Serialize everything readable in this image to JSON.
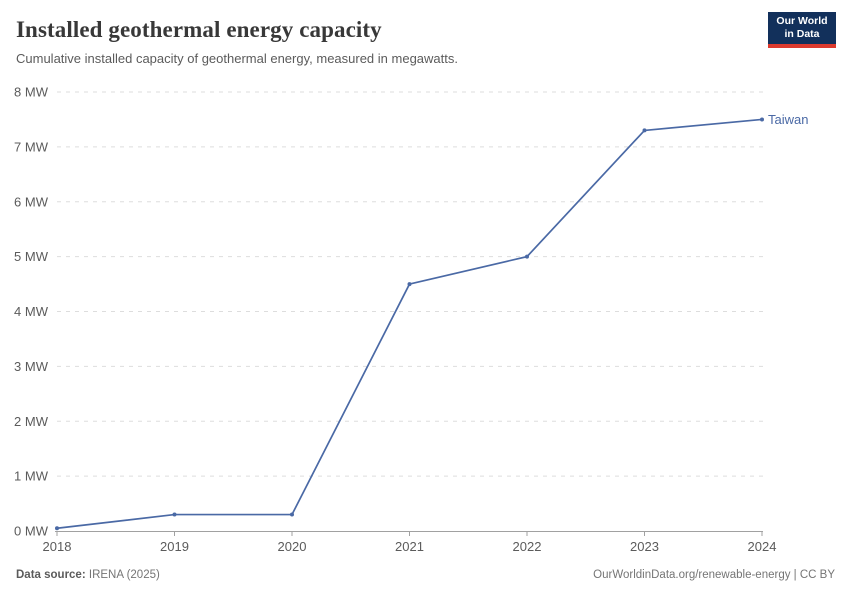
{
  "header": {
    "title": "Installed geothermal energy capacity",
    "subtitle": "Cumulative installed capacity of geothermal energy, measured in megawatts.",
    "logo": {
      "line1": "Our World",
      "line2": "in Data"
    }
  },
  "chart_data": {
    "type": "line",
    "title": "Installed geothermal energy capacity",
    "subtitle": "Cumulative installed capacity of geothermal energy, measured in megawatts.",
    "x": [
      2018,
      2019,
      2020,
      2021,
      2022,
      2023,
      2024
    ],
    "x_tick_labels": [
      "2018",
      "2019",
      "2020",
      "2021",
      "2022",
      "2023",
      "2024"
    ],
    "series": [
      {
        "name": "Taiwan",
        "values": [
          0.05,
          0.3,
          0.3,
          4.5,
          5.0,
          7.3,
          7.5
        ],
        "color": "#4a69a5"
      }
    ],
    "unit": "MW",
    "ylim": [
      0,
      8
    ],
    "y_ticks": [
      0,
      1,
      2,
      3,
      4,
      5,
      6,
      7,
      8
    ],
    "y_tick_labels": [
      "0 MW",
      "1 MW",
      "2 MW",
      "3 MW",
      "4 MW",
      "5 MW",
      "6 MW",
      "7 MW",
      "8 MW"
    ],
    "grid": "horizontal-dashed",
    "legend_position": "end-of-line-label",
    "xlabel": "",
    "ylabel": ""
  },
  "footer": {
    "data_source_label": "Data source:",
    "data_source_value": "IRENA (2025)",
    "attribution": "OurWorldinData.org/renewable-energy | CC BY"
  },
  "colors": {
    "line": "#4a69a5",
    "grid": "#dddddd",
    "axis": "#a1a1a1",
    "tick_text": "#5b5b5b",
    "title_text": "#383838",
    "logo_bg": "#12305b",
    "logo_accent": "#dc3a2e"
  }
}
